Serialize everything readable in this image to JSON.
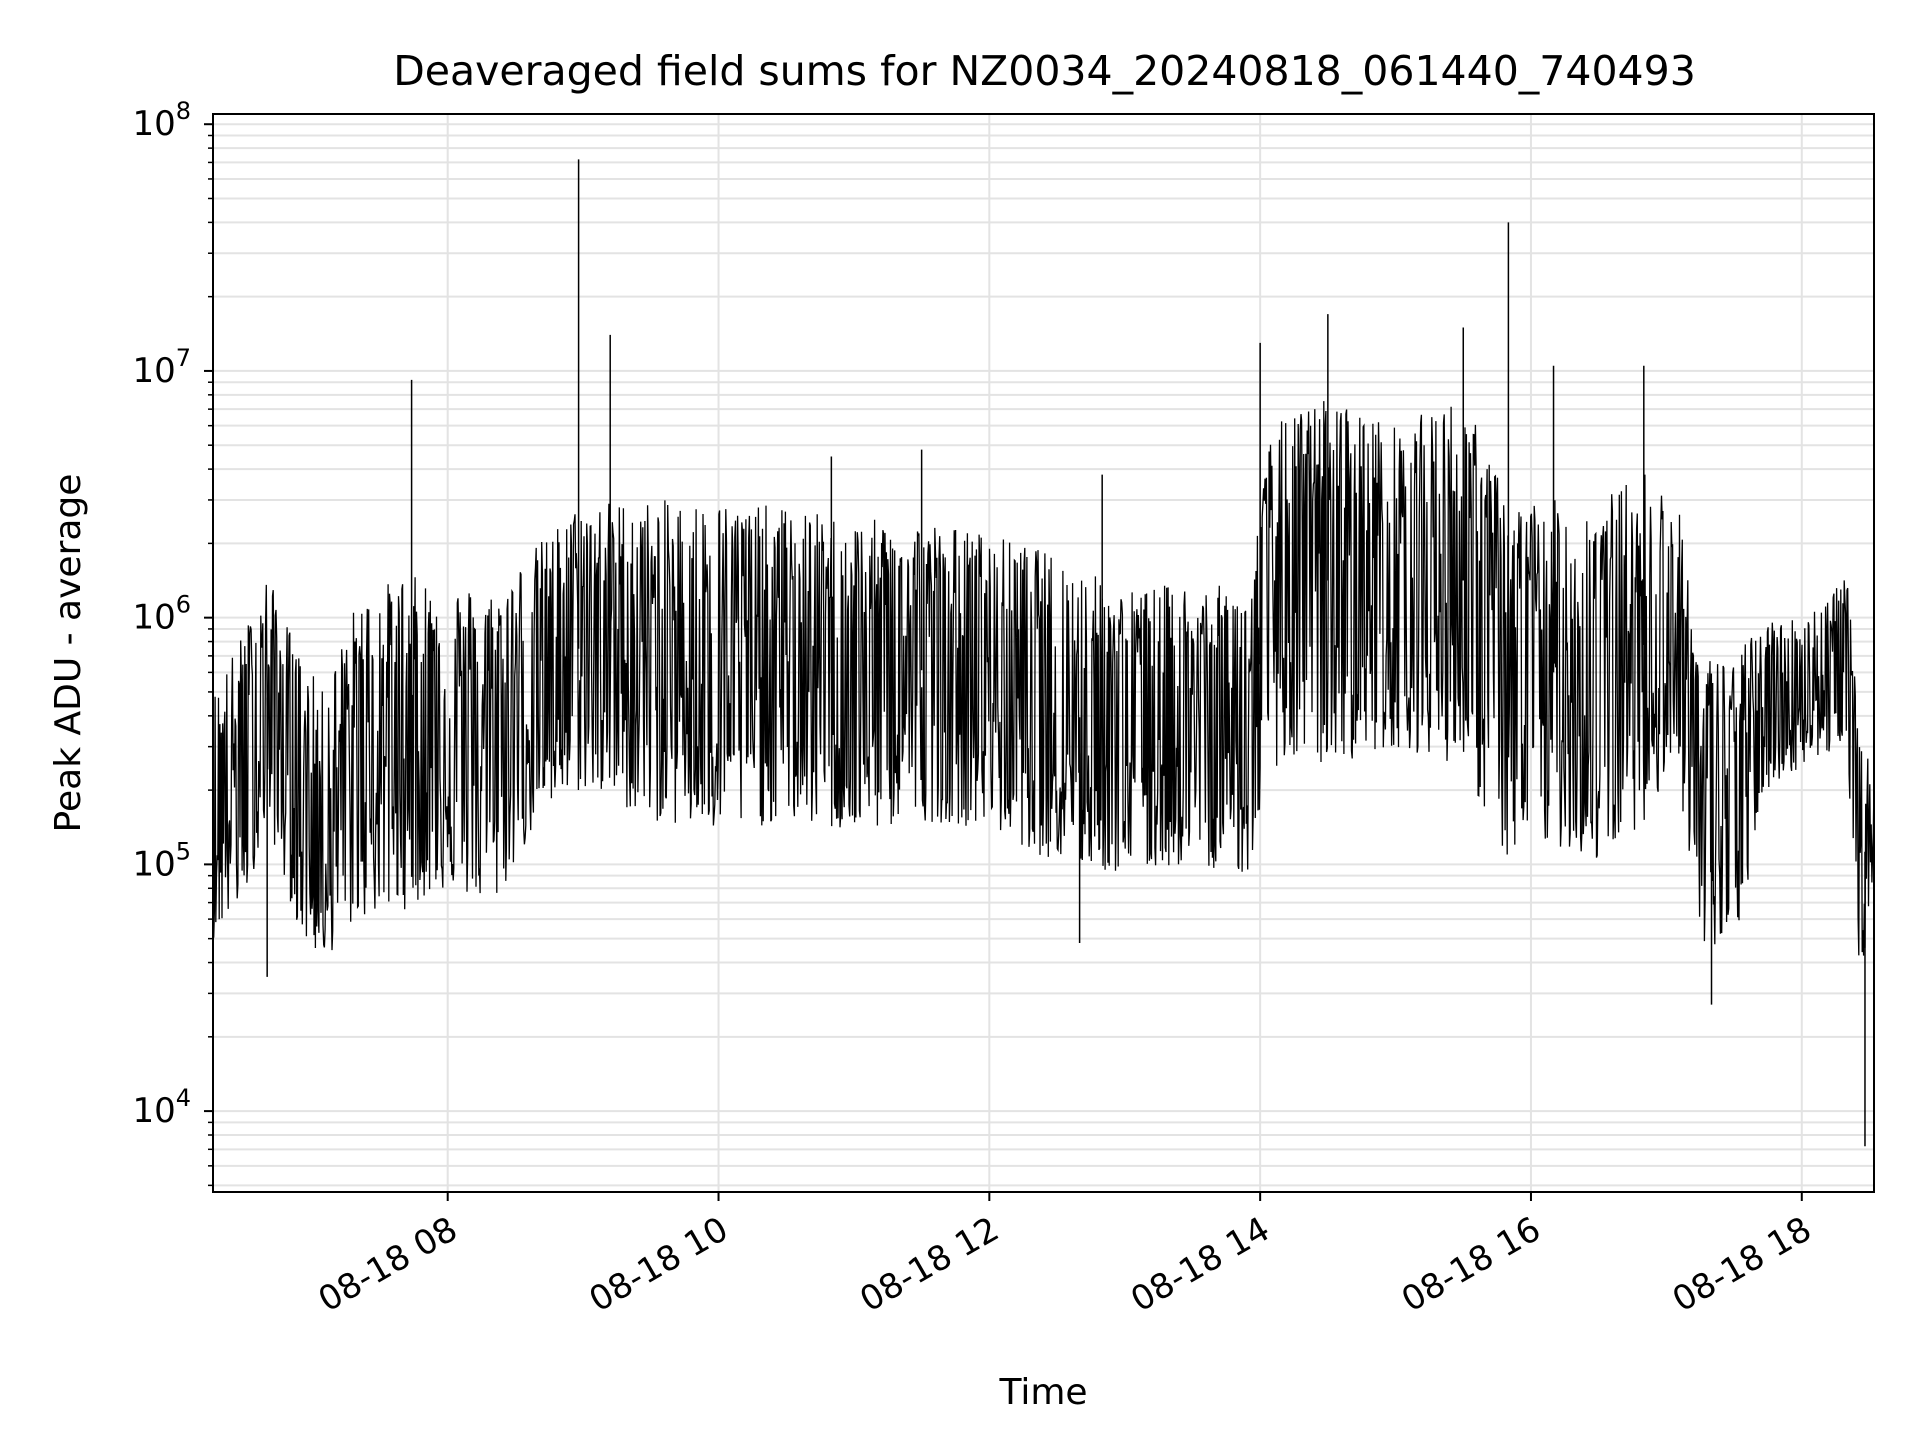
{
  "chart_data": {
    "type": "line",
    "title": "Deaveraged field sums for NZ0034_20240818_061440_740493",
    "xlabel": "Time",
    "ylabel": "Peak ADU - average",
    "yscale": "log",
    "ylim": [
      4700,
      110000000
    ],
    "xlim": [
      "2024-08-18 06:16",
      "2024-08-18 18:32"
    ],
    "grid": true,
    "legend": "none",
    "line_color": "#000000",
    "grid_color": "#e3e3e3",
    "x_ticks": [
      {
        "value": "2024-08-18 08:00",
        "label": "08-18 08"
      },
      {
        "value": "2024-08-18 10:00",
        "label": "08-18 10"
      },
      {
        "value": "2024-08-18 12:00",
        "label": "08-18 12"
      },
      {
        "value": "2024-08-18 14:00",
        "label": "08-18 14"
      },
      {
        "value": "2024-08-18 16:00",
        "label": "08-18 16"
      },
      {
        "value": "2024-08-18 18:00",
        "label": "08-18 18"
      }
    ],
    "y_ticks": [
      {
        "value": 10000,
        "base": "10",
        "exp": "4"
      },
      {
        "value": 100000,
        "base": "10",
        "exp": "5"
      },
      {
        "value": 1000000,
        "base": "10",
        "exp": "6"
      },
      {
        "value": 10000000,
        "base": "10",
        "exp": "7"
      },
      {
        "value": 100000000,
        "base": "10",
        "exp": "8"
      }
    ],
    "series": [
      {
        "band_note": "envelope",
        "envelope": [
          {
            "t": "2024-08-18 06:16",
            "low": 50000,
            "high": 500000
          },
          {
            "t": "2024-08-18 06:30",
            "low": 70000,
            "high": 900000
          },
          {
            "t": "2024-08-18 06:40",
            "low": 150000,
            "high": 1500000
          },
          {
            "t": "2024-08-18 06:55",
            "low": 50000,
            "high": 700000
          },
          {
            "t": "2024-08-18 07:05",
            "low": 40000,
            "high": 500000
          },
          {
            "t": "2024-08-18 07:20",
            "low": 60000,
            "high": 1200000
          },
          {
            "t": "2024-08-18 07:40",
            "low": 65000,
            "high": 1500000
          },
          {
            "t": "2024-08-18 08:00",
            "low": 80000,
            "high": 1400000
          },
          {
            "t": "2024-08-18 08:20",
            "low": 65000,
            "high": 1300000
          },
          {
            "t": "2024-08-18 08:40",
            "low": 150000,
            "high": 2000000
          },
          {
            "t": "2024-08-18 09:00",
            "low": 200000,
            "high": 3000000
          },
          {
            "t": "2024-08-18 09:30",
            "low": 150000,
            "high": 3000000
          },
          {
            "t": "2024-08-18 10:00",
            "low": 130000,
            "high": 3000000
          },
          {
            "t": "2024-08-18 10:30",
            "low": 150000,
            "high": 2800000
          },
          {
            "t": "2024-08-18 11:00",
            "low": 130000,
            "high": 2500000
          },
          {
            "t": "2024-08-18 11:30",
            "low": 150000,
            "high": 2500000
          },
          {
            "t": "2024-08-18 12:00",
            "low": 140000,
            "high": 2200000
          },
          {
            "t": "2024-08-18 12:30",
            "low": 100000,
            "high": 1800000
          },
          {
            "t": "2024-08-18 13:00",
            "low": 90000,
            "high": 1300000
          },
          {
            "t": "2024-08-18 13:30",
            "low": 100000,
            "high": 1400000
          },
          {
            "t": "2024-08-18 13:55",
            "low": 90000,
            "high": 1300000
          },
          {
            "t": "2024-08-18 14:05",
            "low": 250000,
            "high": 6000000
          },
          {
            "t": "2024-08-18 14:30",
            "low": 250000,
            "high": 8000000
          },
          {
            "t": "2024-08-18 15:00",
            "low": 300000,
            "high": 6000000
          },
          {
            "t": "2024-08-18 15:30",
            "low": 250000,
            "high": 8000000
          },
          {
            "t": "2024-08-18 15:50",
            "low": 100000,
            "high": 3000000
          },
          {
            "t": "2024-08-18 16:10",
            "low": 120000,
            "high": 3000000
          },
          {
            "t": "2024-08-18 16:30",
            "low": 100000,
            "high": 3000000
          },
          {
            "t": "2024-08-18 16:50",
            "low": 150000,
            "high": 4000000
          },
          {
            "t": "2024-08-18 17:05",
            "low": 250000,
            "high": 3000000
          },
          {
            "t": "2024-08-18 17:15",
            "low": 40000,
            "high": 700000
          },
          {
            "t": "2024-08-18 17:30",
            "low": 45000,
            "high": 700000
          },
          {
            "t": "2024-08-18 17:45",
            "low": 200000,
            "high": 1000000
          },
          {
            "t": "2024-08-18 18:00",
            "low": 250000,
            "high": 1000000
          },
          {
            "t": "2024-08-18 18:20",
            "low": 300000,
            "high": 1500000
          },
          {
            "t": "2024-08-18 18:26",
            "low": 30000,
            "high": 300000
          },
          {
            "t": "2024-08-18 18:32",
            "low": 100000,
            "high": 250000
          }
        ],
        "spikes": [
          {
            "t": "2024-08-18 07:44",
            "value": 9200000
          },
          {
            "t": "2024-08-18 08:58",
            "value": 72000000
          },
          {
            "t": "2024-08-18 09:12",
            "value": 14000000
          },
          {
            "t": "2024-08-18 10:50",
            "value": 4500000
          },
          {
            "t": "2024-08-18 11:30",
            "value": 4800000
          },
          {
            "t": "2024-08-18 12:50",
            "value": 3800000
          },
          {
            "t": "2024-08-18 14:00",
            "value": 13000000
          },
          {
            "t": "2024-08-18 14:30",
            "value": 17000000
          },
          {
            "t": "2024-08-18 15:30",
            "value": 15000000
          },
          {
            "t": "2024-08-18 15:50",
            "value": 40000000
          },
          {
            "t": "2024-08-18 16:10",
            "value": 10500000
          },
          {
            "t": "2024-08-18 16:50",
            "value": 10500000
          },
          {
            "t": "2024-08-18 12:40",
            "value": 48000
          },
          {
            "t": "2024-08-18 06:40",
            "value": 35000
          },
          {
            "t": "2024-08-18 17:20",
            "value": 27000
          },
          {
            "t": "2024-08-18 18:28",
            "value": 7200
          }
        ]
      }
    ]
  }
}
